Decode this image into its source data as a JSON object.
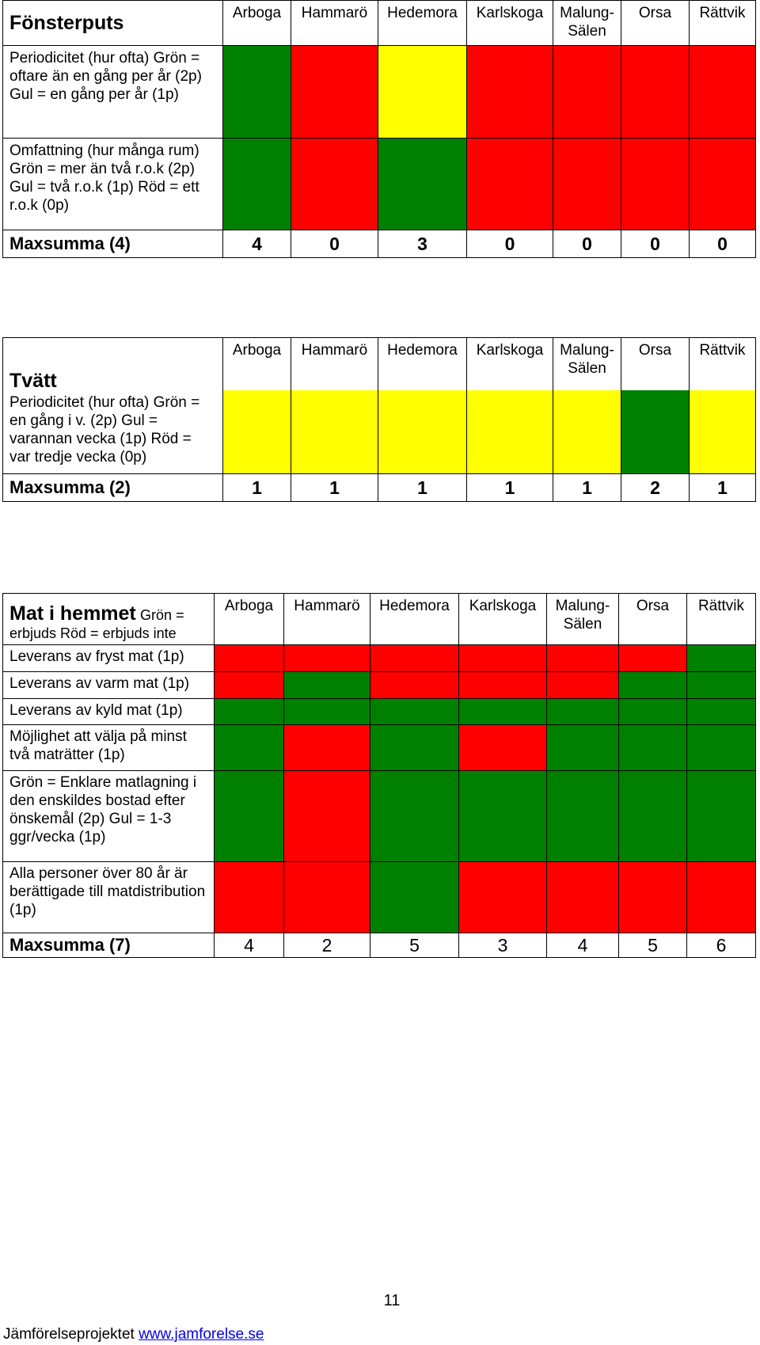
{
  "municipalities": [
    "Arboga",
    "Hammarö",
    "Hedemora",
    "Karlskoga",
    "Malung-Sälen",
    "Orsa",
    "Rättvik"
  ],
  "colors": {
    "green": "#008000",
    "red": "#ff0000",
    "yellow": "#ffff00"
  },
  "fonsterputs": {
    "title": "Fönsterputs",
    "rows": [
      {
        "label": "Periodicitet (hur ofta) Grön = oftare än en gång per år (2p) Gul = en gång per år (1p)",
        "cells": [
          "green",
          "red",
          "yellow",
          "red",
          "red",
          "red",
          "red"
        ]
      },
      {
        "label": "Omfattning (hur många rum) Grön = mer än två r.o.k (2p) Gul = två r.o.k (1p) Röd = ett r.o.k (0p)",
        "cells": [
          "green",
          "red",
          "green",
          "red",
          "red",
          "red",
          "red"
        ]
      }
    ],
    "sum_label": "Maxsumma (4)",
    "sums": [
      "4",
      "0",
      "3",
      "0",
      "0",
      "0",
      "0"
    ]
  },
  "tvatt": {
    "title": "Tvätt",
    "rows": [
      {
        "label": "Periodicitet (hur ofta) Grön = en gång i v. (2p) Gul = varannan vecka (1p) Röd = var tredje vecka (0p)",
        "cells": [
          "yellow",
          "yellow",
          "yellow",
          "yellow",
          "yellow",
          "green",
          "yellow"
        ]
      }
    ],
    "sum_label": "Maxsumma (2)",
    "sums": [
      "1",
      "1",
      "1",
      "1",
      "1",
      "2",
      "1"
    ]
  },
  "mat": {
    "title": "Mat i hemmet",
    "subtitle": "Grön = erbjuds Röd = erbjuds inte",
    "rows": [
      {
        "label": "Leverans av fryst mat (1p)",
        "cells": [
          "red",
          "red",
          "red",
          "red",
          "red",
          "red",
          "green"
        ]
      },
      {
        "label": "Leverans av varm mat (1p)",
        "cells": [
          "red",
          "green",
          "red",
          "red",
          "red",
          "green",
          "green"
        ]
      },
      {
        "label": "Leverans av kyld mat (1p)",
        "cells": [
          "green",
          "green",
          "green",
          "green",
          "green",
          "green",
          "green"
        ]
      },
      {
        "label": "Möjlighet att välja på minst två maträtter (1p)",
        "cells": [
          "green",
          "red",
          "green",
          "red",
          "green",
          "green",
          "green"
        ]
      },
      {
        "label": "Grön = Enklare matlagning i den enskildes bostad efter önskemål (2p) Gul = 1-3 ggr/vecka (1p)",
        "cells": [
          "green",
          "red",
          "green",
          "green",
          "green",
          "green",
          "green"
        ]
      },
      {
        "label": "Alla personer över 80 år är berättigade till matdistribution (1p)",
        "cells": [
          "red",
          "red",
          "green",
          "red",
          "red",
          "red",
          "red"
        ]
      }
    ],
    "sum_label": "Maxsumma (7)",
    "sums": [
      "4",
      "2",
      "5",
      "3",
      "4",
      "5",
      "6"
    ]
  },
  "page_number": "11",
  "footer": {
    "text": "Jämförelseprojektet ",
    "link": "www.jamforelse.se"
  }
}
